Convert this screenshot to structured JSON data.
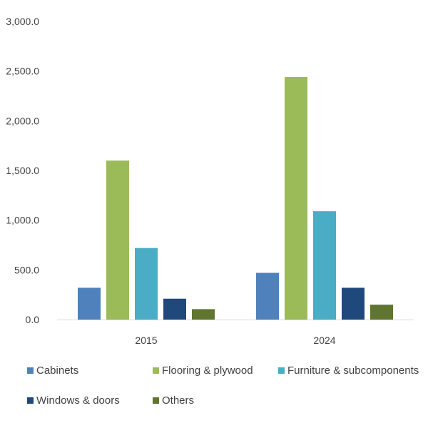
{
  "chart_data": {
    "type": "bar",
    "categories": [
      "2015",
      "2024"
    ],
    "series": [
      {
        "name": "Cabinets",
        "color": "#4f81bd",
        "values": [
          320,
          470
        ]
      },
      {
        "name": "Flooring & plywood",
        "color": "#9bbb59",
        "values": [
          1600,
          2440
        ]
      },
      {
        "name": "Furniture & subcomponents",
        "color": "#4bacc6",
        "values": [
          720,
          1090
        ]
      },
      {
        "name": "Windows & doors",
        "color": "#1f497d",
        "values": [
          210,
          320
        ]
      },
      {
        "name": "Others",
        "color": "#5f7530",
        "values": [
          105,
          150
        ]
      }
    ],
    "yticks": [
      "0.0",
      "500.0",
      "1,000.0",
      "1,500.0",
      "2,000.0",
      "2,500.0",
      "3,000.0"
    ],
    "ylim": [
      0,
      3000
    ],
    "grid": false,
    "legend_position": "bottom",
    "title": "",
    "xlabel": "",
    "ylabel": ""
  }
}
